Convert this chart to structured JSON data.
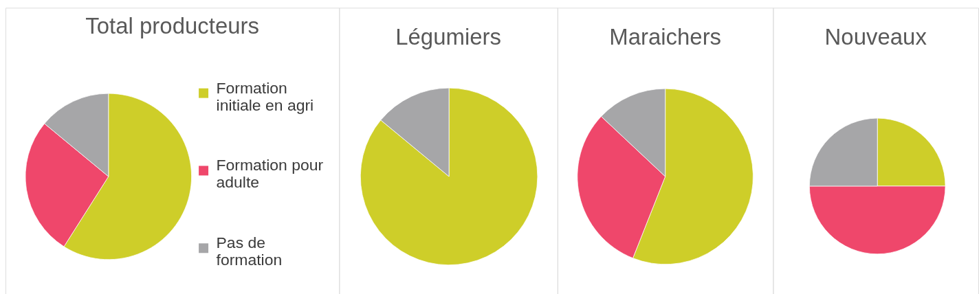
{
  "chart_data": [
    {
      "type": "pie",
      "title": "Total producteurs",
      "categories": [
        "Formation initiale en agri",
        "Formation pour adulte",
        "Pas de formation"
      ],
      "values": [
        59,
        27,
        14
      ],
      "colors": [
        "#cece29",
        "#ef476b",
        "#a6a6a8"
      ],
      "legend": "right"
    },
    {
      "type": "pie",
      "title": "Légumiers",
      "categories": [
        null,
        null
      ],
      "values": [
        86,
        14
      ],
      "colors": [
        "#cece29",
        "#a6a6a8"
      ]
    },
    {
      "type": "pie",
      "title": "Maraichers",
      "categories": [
        null,
        null,
        null
      ],
      "values": [
        56,
        31,
        13
      ],
      "colors": [
        "#cece29",
        "#ef476b",
        "#a6a6a8"
      ]
    },
    {
      "type": "pie",
      "title": "Nouveaux",
      "categories": [
        null,
        null,
        null
      ],
      "values": [
        25,
        50,
        25
      ],
      "colors": [
        "#cece29",
        "#ef476b",
        "#a6a6a8"
      ]
    }
  ]
}
